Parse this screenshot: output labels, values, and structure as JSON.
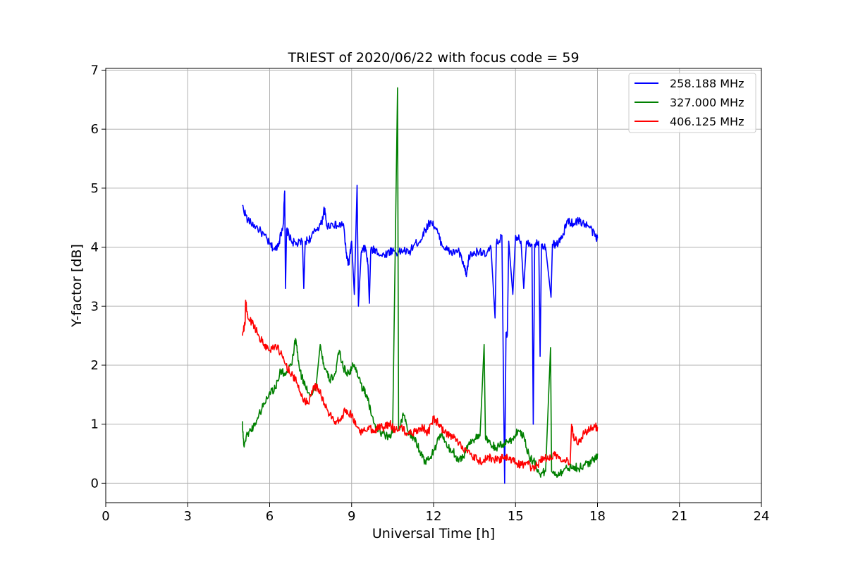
{
  "chart_data": {
    "type": "line",
    "title": "TRIEST of 2020/06/22 with focus code = 59",
    "xlabel": "Universal Time [h]",
    "ylabel": "Y-factor [dB]",
    "xlim": [
      0,
      24
    ],
    "ylim": [
      -0.33,
      7.03
    ],
    "xticks": [
      0,
      3,
      6,
      9,
      12,
      15,
      18,
      21,
      24
    ],
    "yticks": [
      0,
      1,
      2,
      3,
      4,
      5,
      6,
      7
    ],
    "grid": true,
    "legend_position": "top-right",
    "series": [
      {
        "name": "258.188 MHz",
        "color": "#0000ff",
        "points": [
          [
            5.0,
            4.7
          ],
          [
            5.2,
            4.45
          ],
          [
            5.5,
            4.35
          ],
          [
            5.8,
            4.2
          ],
          [
            6.0,
            4.05
          ],
          [
            6.2,
            3.95
          ],
          [
            6.35,
            4.1
          ],
          [
            6.5,
            4.4
          ],
          [
            6.55,
            4.95
          ],
          [
            6.58,
            3.3
          ],
          [
            6.62,
            4.3
          ],
          [
            6.8,
            4.1
          ],
          [
            7.0,
            4.05
          ],
          [
            7.2,
            4.1
          ],
          [
            7.25,
            3.3
          ],
          [
            7.3,
            4.1
          ],
          [
            7.5,
            4.15
          ],
          [
            7.7,
            4.3
          ],
          [
            7.9,
            4.4
          ],
          [
            8.0,
            4.65
          ],
          [
            8.1,
            4.35
          ],
          [
            8.3,
            4.4
          ],
          [
            8.5,
            4.35
          ],
          [
            8.7,
            4.4
          ],
          [
            8.8,
            3.9
          ],
          [
            8.9,
            3.7
          ],
          [
            9.0,
            4.1
          ],
          [
            9.1,
            3.2
          ],
          [
            9.2,
            5.05
          ],
          [
            9.25,
            3.0
          ],
          [
            9.35,
            3.9
          ],
          [
            9.5,
            4.0
          ],
          [
            9.6,
            3.7
          ],
          [
            9.65,
            3.05
          ],
          [
            9.7,
            3.95
          ],
          [
            9.9,
            3.95
          ],
          [
            10.1,
            3.85
          ],
          [
            10.3,
            3.9
          ],
          [
            10.5,
            3.95
          ],
          [
            10.7,
            3.9
          ],
          [
            10.9,
            3.95
          ],
          [
            11.1,
            3.9
          ],
          [
            11.3,
            4.05
          ],
          [
            11.5,
            4.1
          ],
          [
            11.7,
            4.3
          ],
          [
            11.9,
            4.45
          ],
          [
            12.1,
            4.3
          ],
          [
            12.3,
            4.05
          ],
          [
            12.5,
            3.95
          ],
          [
            12.7,
            3.9
          ],
          [
            12.9,
            3.95
          ],
          [
            13.1,
            3.7
          ],
          [
            13.2,
            3.5
          ],
          [
            13.3,
            3.85
          ],
          [
            13.5,
            3.9
          ],
          [
            13.7,
            3.95
          ],
          [
            13.9,
            3.85
          ],
          [
            14.1,
            4.0
          ],
          [
            14.25,
            2.8
          ],
          [
            14.3,
            4.05
          ],
          [
            14.5,
            4.2
          ],
          [
            14.6,
            0.0
          ],
          [
            14.65,
            2.5
          ],
          [
            14.7,
            2.5
          ],
          [
            14.75,
            4.1
          ],
          [
            14.9,
            3.2
          ],
          [
            15.0,
            4.2
          ],
          [
            15.2,
            4.1
          ],
          [
            15.3,
            3.3
          ],
          [
            15.4,
            4.1
          ],
          [
            15.6,
            4.05
          ],
          [
            15.65,
            1.0
          ],
          [
            15.7,
            4.05
          ],
          [
            15.85,
            4.1
          ],
          [
            15.9,
            2.15
          ],
          [
            15.95,
            4.05
          ],
          [
            16.1,
            4.0
          ],
          [
            16.3,
            3.15
          ],
          [
            16.35,
            4.05
          ],
          [
            16.5,
            4.05
          ],
          [
            16.7,
            4.15
          ],
          [
            16.9,
            4.45
          ],
          [
            17.1,
            4.4
          ],
          [
            17.3,
            4.45
          ],
          [
            17.5,
            4.4
          ],
          [
            17.7,
            4.35
          ],
          [
            17.9,
            4.2
          ],
          [
            18.0,
            4.15
          ]
        ]
      },
      {
        "name": "327.000 MHz",
        "color": "#008000",
        "points": [
          [
            5.0,
            1.05
          ],
          [
            5.05,
            0.65
          ],
          [
            5.2,
            0.85
          ],
          [
            5.4,
            0.95
          ],
          [
            5.6,
            1.15
          ],
          [
            5.8,
            1.35
          ],
          [
            6.0,
            1.55
          ],
          [
            6.2,
            1.6
          ],
          [
            6.4,
            1.9
          ],
          [
            6.6,
            1.85
          ],
          [
            6.8,
            2.0
          ],
          [
            6.95,
            2.45
          ],
          [
            7.1,
            1.9
          ],
          [
            7.3,
            1.65
          ],
          [
            7.5,
            1.5
          ],
          [
            7.7,
            1.65
          ],
          [
            7.85,
            2.35
          ],
          [
            8.0,
            1.95
          ],
          [
            8.2,
            1.75
          ],
          [
            8.4,
            1.85
          ],
          [
            8.55,
            2.25
          ],
          [
            8.7,
            1.95
          ],
          [
            8.9,
            1.85
          ],
          [
            9.05,
            2.0
          ],
          [
            9.2,
            1.9
          ],
          [
            9.4,
            1.6
          ],
          [
            9.55,
            1.5
          ],
          [
            9.7,
            1.2
          ],
          [
            9.9,
            0.95
          ],
          [
            10.1,
            0.85
          ],
          [
            10.3,
            0.8
          ],
          [
            10.5,
            0.85
          ],
          [
            10.68,
            6.7
          ],
          [
            10.72,
            0.9
          ],
          [
            10.9,
            1.15
          ],
          [
            11.1,
            0.85
          ],
          [
            11.3,
            0.75
          ],
          [
            11.5,
            0.55
          ],
          [
            11.7,
            0.35
          ],
          [
            11.9,
            0.45
          ],
          [
            12.1,
            0.65
          ],
          [
            12.3,
            0.85
          ],
          [
            12.5,
            0.6
          ],
          [
            12.7,
            0.55
          ],
          [
            12.9,
            0.4
          ],
          [
            13.1,
            0.45
          ],
          [
            13.3,
            0.7
          ],
          [
            13.5,
            0.75
          ],
          [
            13.7,
            0.8
          ],
          [
            13.85,
            2.35
          ],
          [
            13.9,
            0.75
          ],
          [
            14.1,
            0.65
          ],
          [
            14.3,
            0.6
          ],
          [
            14.5,
            0.65
          ],
          [
            14.7,
            0.7
          ],
          [
            14.9,
            0.75
          ],
          [
            15.1,
            0.9
          ],
          [
            15.3,
            0.8
          ],
          [
            15.5,
            0.45
          ],
          [
            15.7,
            0.35
          ],
          [
            15.9,
            0.15
          ],
          [
            16.1,
            0.2
          ],
          [
            16.28,
            2.3
          ],
          [
            16.32,
            0.2
          ],
          [
            16.5,
            0.15
          ],
          [
            16.7,
            0.2
          ],
          [
            16.9,
            0.25
          ],
          [
            17.1,
            0.3
          ],
          [
            17.3,
            0.25
          ],
          [
            17.5,
            0.3
          ],
          [
            17.7,
            0.35
          ],
          [
            17.9,
            0.4
          ],
          [
            18.0,
            0.5
          ]
        ]
      },
      {
        "name": "406.125 MHz",
        "color": "#ff0000",
        "points": [
          [
            5.0,
            2.5
          ],
          [
            5.1,
            2.7
          ],
          [
            5.12,
            3.1
          ],
          [
            5.2,
            2.8
          ],
          [
            5.4,
            2.7
          ],
          [
            5.6,
            2.5
          ],
          [
            5.8,
            2.35
          ],
          [
            6.0,
            2.25
          ],
          [
            6.2,
            2.35
          ],
          [
            6.4,
            2.2
          ],
          [
            6.6,
            2.0
          ],
          [
            6.8,
            1.85
          ],
          [
            7.0,
            1.7
          ],
          [
            7.2,
            1.45
          ],
          [
            7.4,
            1.35
          ],
          [
            7.6,
            1.65
          ],
          [
            7.8,
            1.6
          ],
          [
            8.0,
            1.35
          ],
          [
            8.2,
            1.15
          ],
          [
            8.4,
            1.05
          ],
          [
            8.6,
            1.1
          ],
          [
            8.8,
            1.25
          ],
          [
            9.0,
            1.15
          ],
          [
            9.2,
            0.95
          ],
          [
            9.4,
            0.85
          ],
          [
            9.6,
            0.95
          ],
          [
            9.8,
            0.9
          ],
          [
            10.0,
            0.95
          ],
          [
            10.2,
            0.95
          ],
          [
            10.4,
            1.0
          ],
          [
            10.6,
            0.9
          ],
          [
            10.8,
            0.95
          ],
          [
            11.0,
            0.85
          ],
          [
            11.2,
            0.85
          ],
          [
            11.4,
            0.9
          ],
          [
            11.6,
            0.95
          ],
          [
            11.8,
            0.85
          ],
          [
            12.0,
            1.1
          ],
          [
            12.2,
            1.0
          ],
          [
            12.4,
            0.85
          ],
          [
            12.6,
            0.8
          ],
          [
            12.8,
            0.75
          ],
          [
            13.0,
            0.65
          ],
          [
            13.2,
            0.55
          ],
          [
            13.4,
            0.45
          ],
          [
            13.6,
            0.4
          ],
          [
            13.8,
            0.35
          ],
          [
            14.0,
            0.45
          ],
          [
            14.2,
            0.4
          ],
          [
            14.4,
            0.4
          ],
          [
            14.6,
            0.45
          ],
          [
            14.8,
            0.4
          ],
          [
            15.0,
            0.35
          ],
          [
            15.2,
            0.3
          ],
          [
            15.4,
            0.35
          ],
          [
            15.6,
            0.25
          ],
          [
            15.8,
            0.3
          ],
          [
            16.0,
            0.45
          ],
          [
            16.2,
            0.4
          ],
          [
            16.4,
            0.5
          ],
          [
            16.6,
            0.45
          ],
          [
            16.8,
            0.4
          ],
          [
            17.0,
            0.35
          ],
          [
            17.05,
            1.0
          ],
          [
            17.15,
            0.75
          ],
          [
            17.35,
            0.7
          ],
          [
            17.5,
            0.85
          ],
          [
            17.7,
            0.9
          ],
          [
            17.9,
            0.95
          ],
          [
            18.0,
            0.95
          ]
        ]
      }
    ]
  }
}
